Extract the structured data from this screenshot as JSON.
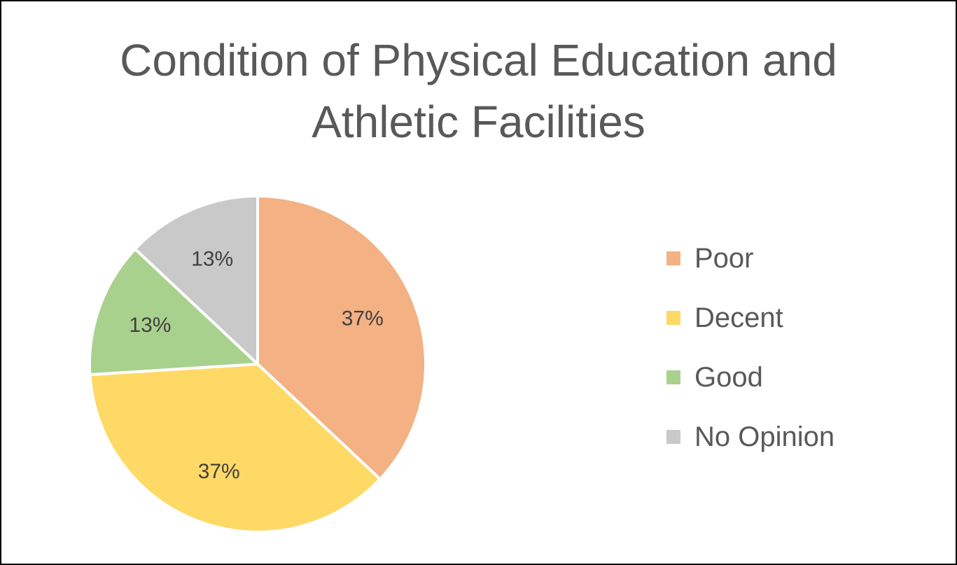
{
  "chart_data": {
    "type": "pie",
    "title": "Condition of Physical Education and Athletic Facilities",
    "title_lines": [
      "Condition of Physical Education and",
      "Athletic Facilities"
    ],
    "legend_position": "right",
    "slices": [
      {
        "name": "Poor",
        "value": 37,
        "label": "37%",
        "color": "#F4B183"
      },
      {
        "name": "Decent",
        "value": 37,
        "label": "37%",
        "color": "#FFD966"
      },
      {
        "name": "Good",
        "value": 13,
        "label": "13%",
        "color": "#A9D18E"
      },
      {
        "name": "No Opinion",
        "value": 13,
        "label": "13%",
        "color": "#C9C9C9"
      }
    ]
  }
}
